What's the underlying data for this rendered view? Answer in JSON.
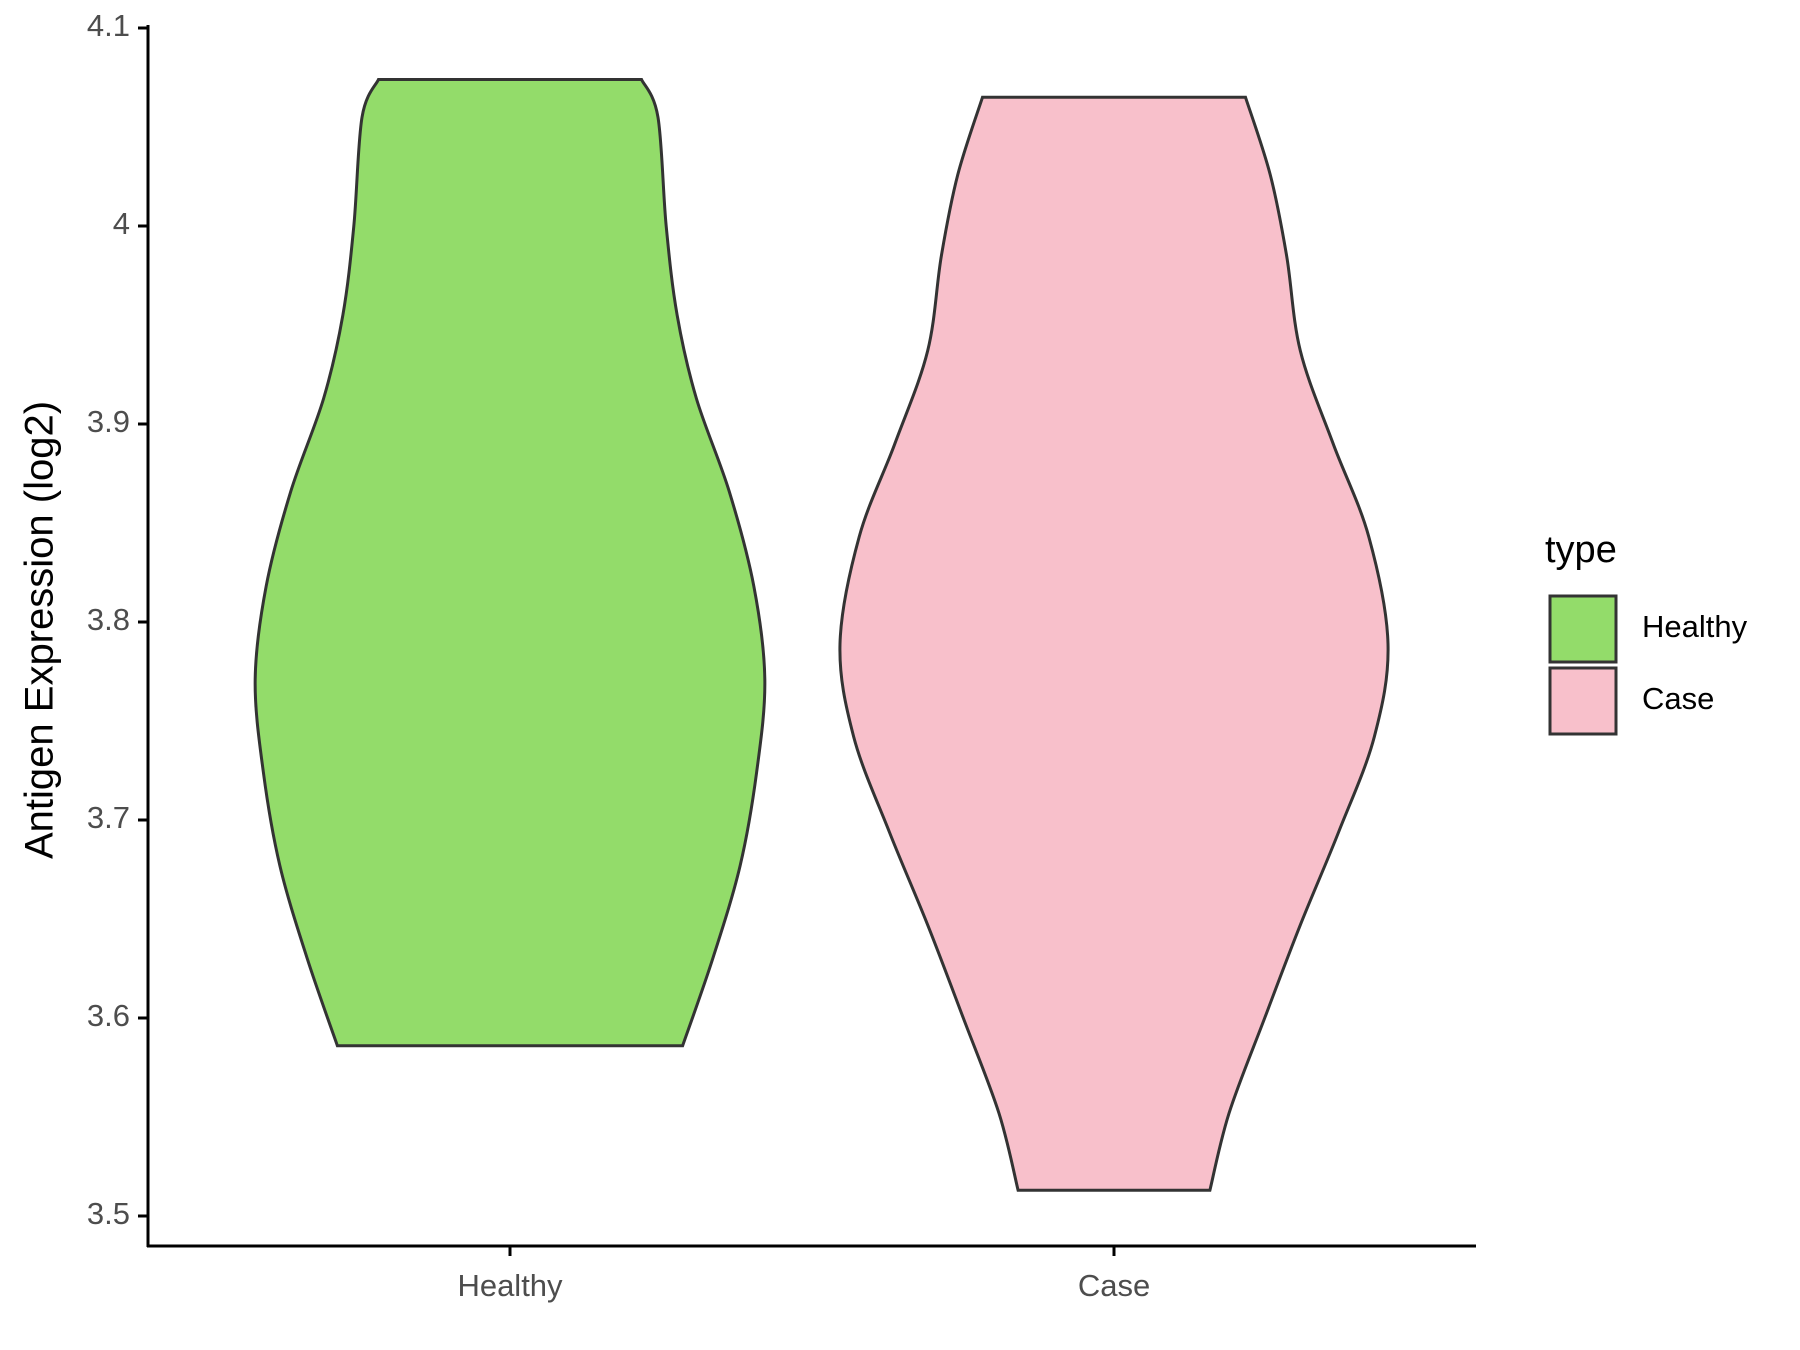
{
  "chart_data": {
    "type": "violin",
    "ylabel": "Antigen Expression (log2)",
    "categories": [
      "Healthy",
      "Case"
    ],
    "ylim": [
      3.5,
      4.1
    ],
    "yticks": [
      3.5,
      3.6,
      3.7,
      3.8,
      3.9,
      4.0,
      4.1
    ],
    "legend_title": "type",
    "legend": "right",
    "series": [
      {
        "name": "Healthy",
        "color": "#93dc6a",
        "y": [
          4.074,
          4.055,
          4.0,
          3.955,
          3.913,
          3.866,
          3.818,
          3.771,
          3.724,
          3.677,
          3.63,
          3.586
        ],
        "density": [
          0.48,
          0.54,
          0.57,
          0.61,
          0.68,
          0.8,
          0.89,
          0.93,
          0.9,
          0.84,
          0.74,
          0.63
        ]
      },
      {
        "name": "Case",
        "color": "#f8c0cb",
        "y": [
          4.065,
          4.026,
          3.985,
          3.937,
          3.89,
          3.843,
          3.789,
          3.742,
          3.694,
          3.647,
          3.6,
          3.552,
          3.513
        ],
        "density": [
          0.48,
          0.57,
          0.63,
          0.68,
          0.8,
          0.93,
          1.0,
          0.95,
          0.82,
          0.68,
          0.55,
          0.42,
          0.35
        ]
      }
    ]
  }
}
